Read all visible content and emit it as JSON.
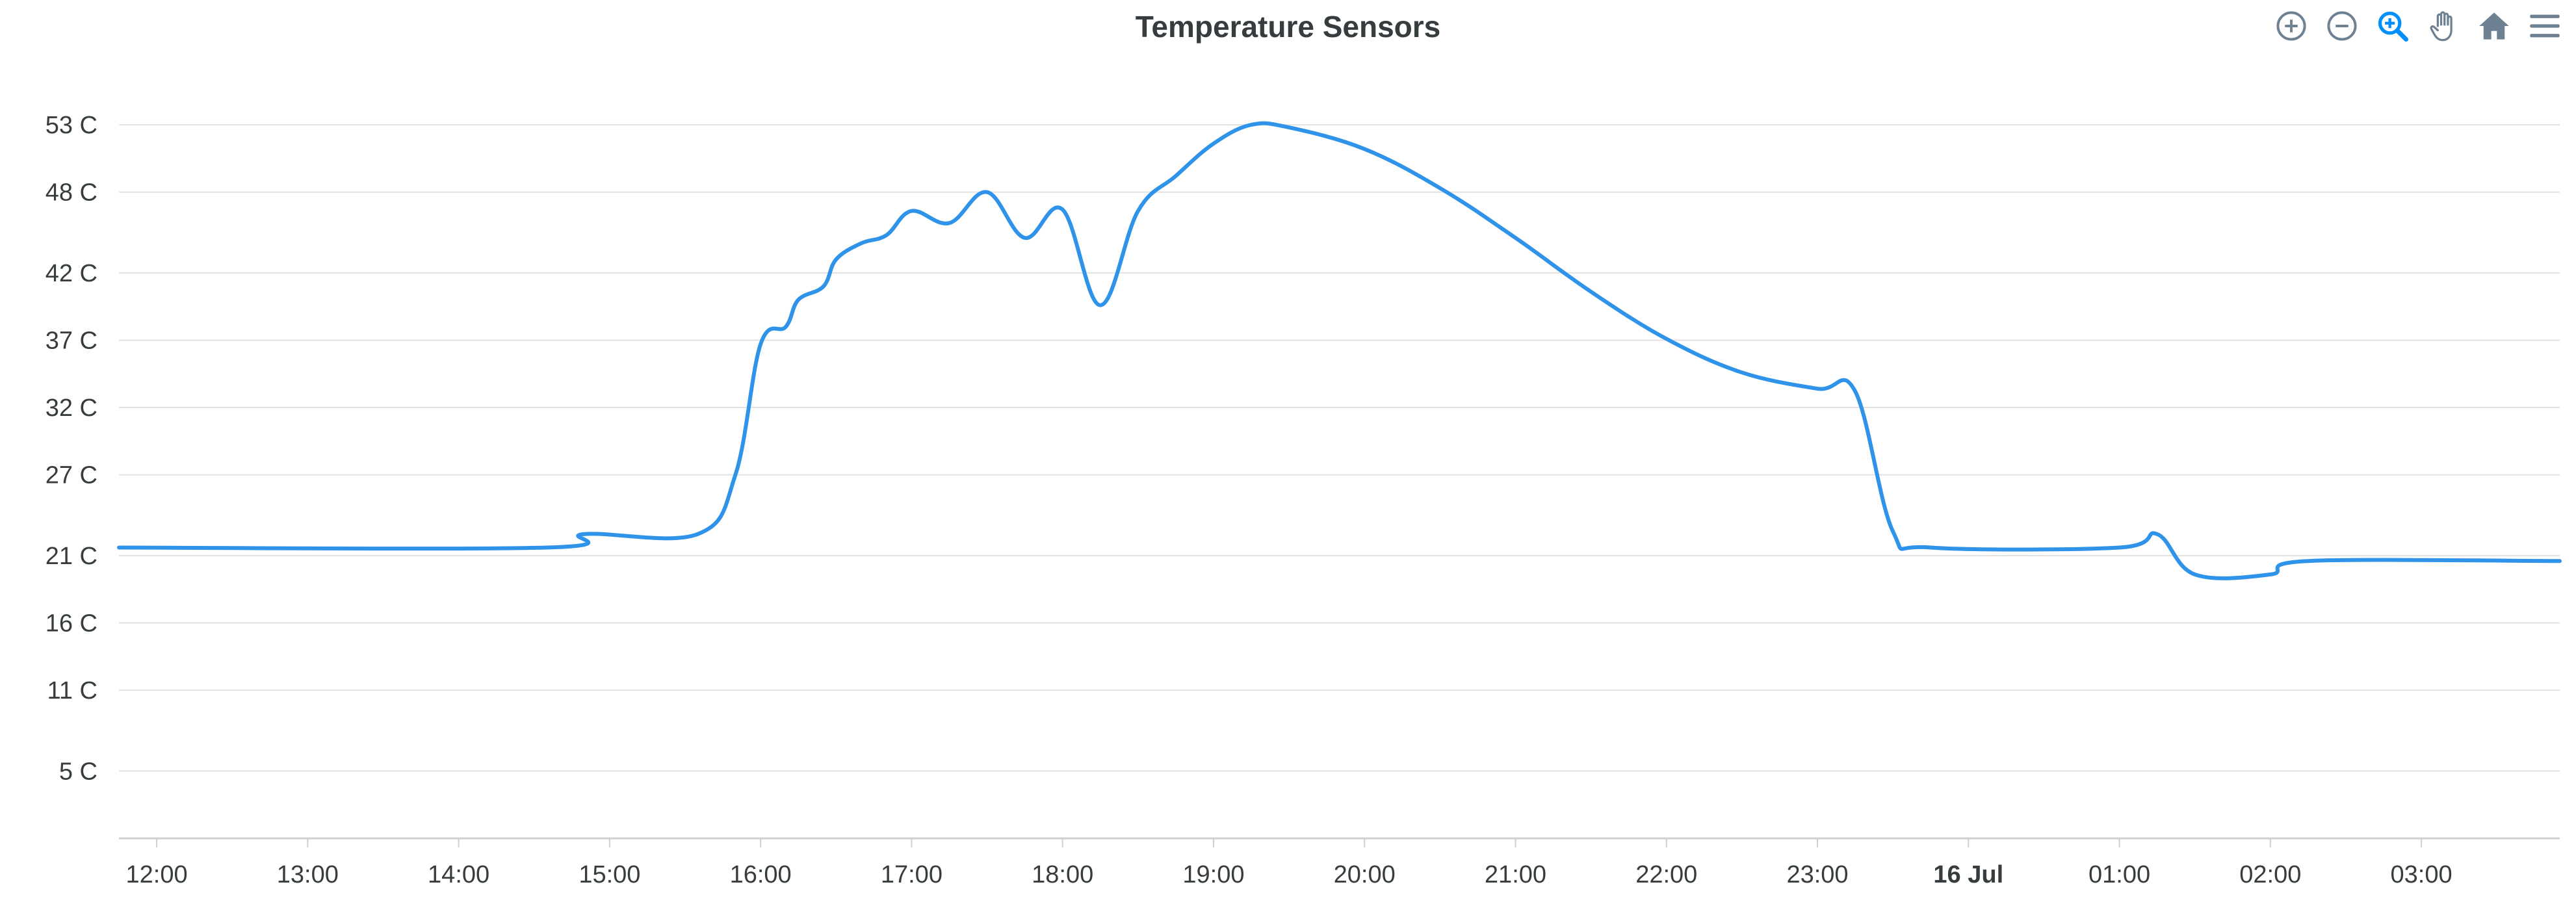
{
  "toolbar": {
    "icons": [
      "zoom-in-icon",
      "zoom-out-icon",
      "zoom-select-icon",
      "pan-hand-icon",
      "home-reset-icon",
      "menu-icon"
    ],
    "active_icon": "zoom-select-icon",
    "icon_color": "#6e8192",
    "active_color": "#008ffb"
  },
  "chart_data": {
    "type": "line",
    "title": "Temperature Sensors",
    "xlabel": "",
    "ylabel": "",
    "y_unit_suffix": " C",
    "line_color": "#2e93e9",
    "grid": true,
    "ylim": [
      0,
      53
    ],
    "yticks": [
      5,
      11,
      16,
      21,
      27,
      32,
      37,
      42,
      48,
      53
    ],
    "ytick_labels": [
      "5 C",
      "11 C",
      "16 C",
      "21 C",
      "27 C",
      "32 C",
      "37 C",
      "42 C",
      "48 C",
      "53 C"
    ],
    "xlim": [
      "2024-07-15T11:45",
      "2024-07-16T03:55"
    ],
    "xticks": [
      {
        "time": "2024-07-15T12:00",
        "label": "12:00",
        "bold": false
      },
      {
        "time": "2024-07-15T13:00",
        "label": "13:00",
        "bold": false
      },
      {
        "time": "2024-07-15T14:00",
        "label": "14:00",
        "bold": false
      },
      {
        "time": "2024-07-15T15:00",
        "label": "15:00",
        "bold": false
      },
      {
        "time": "2024-07-15T16:00",
        "label": "16:00",
        "bold": false
      },
      {
        "time": "2024-07-15T17:00",
        "label": "17:00",
        "bold": false
      },
      {
        "time": "2024-07-15T18:00",
        "label": "18:00",
        "bold": false
      },
      {
        "time": "2024-07-15T19:00",
        "label": "19:00",
        "bold": false
      },
      {
        "time": "2024-07-15T20:00",
        "label": "20:00",
        "bold": false
      },
      {
        "time": "2024-07-15T21:00",
        "label": "21:00",
        "bold": false
      },
      {
        "time": "2024-07-15T22:00",
        "label": "22:00",
        "bold": false
      },
      {
        "time": "2024-07-15T23:00",
        "label": "23:00",
        "bold": false
      },
      {
        "time": "2024-07-16T00:00",
        "label": "16 Jul",
        "bold": true
      },
      {
        "time": "2024-07-16T01:00",
        "label": "01:00",
        "bold": false
      },
      {
        "time": "2024-07-16T02:00",
        "label": "02:00",
        "bold": false
      },
      {
        "time": "2024-07-16T03:00",
        "label": "03:00",
        "bold": false
      }
    ],
    "series": [
      {
        "points": [
          [
            "2024-07-15T11:45",
            21.6
          ],
          [
            "2024-07-15T14:35",
            21.6
          ],
          [
            "2024-07-15T14:50",
            22.6
          ],
          [
            "2024-07-15T15:35",
            22.6
          ],
          [
            "2024-07-15T15:50",
            27.0
          ],
          [
            "2024-07-15T16:00",
            36.7
          ],
          [
            "2024-07-15T16:10",
            38.0
          ],
          [
            "2024-07-15T16:15",
            40.0
          ],
          [
            "2024-07-15T16:25",
            41.0
          ],
          [
            "2024-07-15T16:30",
            43.0
          ],
          [
            "2024-07-15T16:40",
            44.2
          ],
          [
            "2024-07-15T16:50",
            44.8
          ],
          [
            "2024-07-15T17:00",
            46.6
          ],
          [
            "2024-07-15T17:15",
            45.7
          ],
          [
            "2024-07-15T17:30",
            48.0
          ],
          [
            "2024-07-15T17:45",
            44.6
          ],
          [
            "2024-07-15T18:00",
            46.7
          ],
          [
            "2024-07-15T18:15",
            39.6
          ],
          [
            "2024-07-15T18:30",
            46.6
          ],
          [
            "2024-07-15T18:45",
            49.2
          ],
          [
            "2024-07-15T19:00",
            51.6
          ],
          [
            "2024-07-15T19:15",
            53.0
          ],
          [
            "2024-07-15T19:30",
            52.8
          ],
          [
            "2024-07-15T20:00",
            51.2
          ],
          [
            "2024-07-15T20:30",
            48.3
          ],
          [
            "2024-07-15T21:00",
            44.6
          ],
          [
            "2024-07-15T21:30",
            40.6
          ],
          [
            "2024-07-15T22:00",
            37.1
          ],
          [
            "2024-07-15T22:30",
            34.6
          ],
          [
            "2024-07-15T23:00",
            33.4
          ],
          [
            "2024-07-15T23:15",
            33.2
          ],
          [
            "2024-07-15T23:30",
            22.8
          ],
          [
            "2024-07-15T23:45",
            21.6
          ],
          [
            "2024-07-16T01:00",
            21.6
          ],
          [
            "2024-07-16T01:15",
            22.6
          ],
          [
            "2024-07-16T01:30",
            19.6
          ],
          [
            "2024-07-16T02:00",
            19.6
          ],
          [
            "2024-07-16T02:15",
            20.6
          ],
          [
            "2024-07-16T03:55",
            20.6
          ]
        ]
      }
    ]
  }
}
